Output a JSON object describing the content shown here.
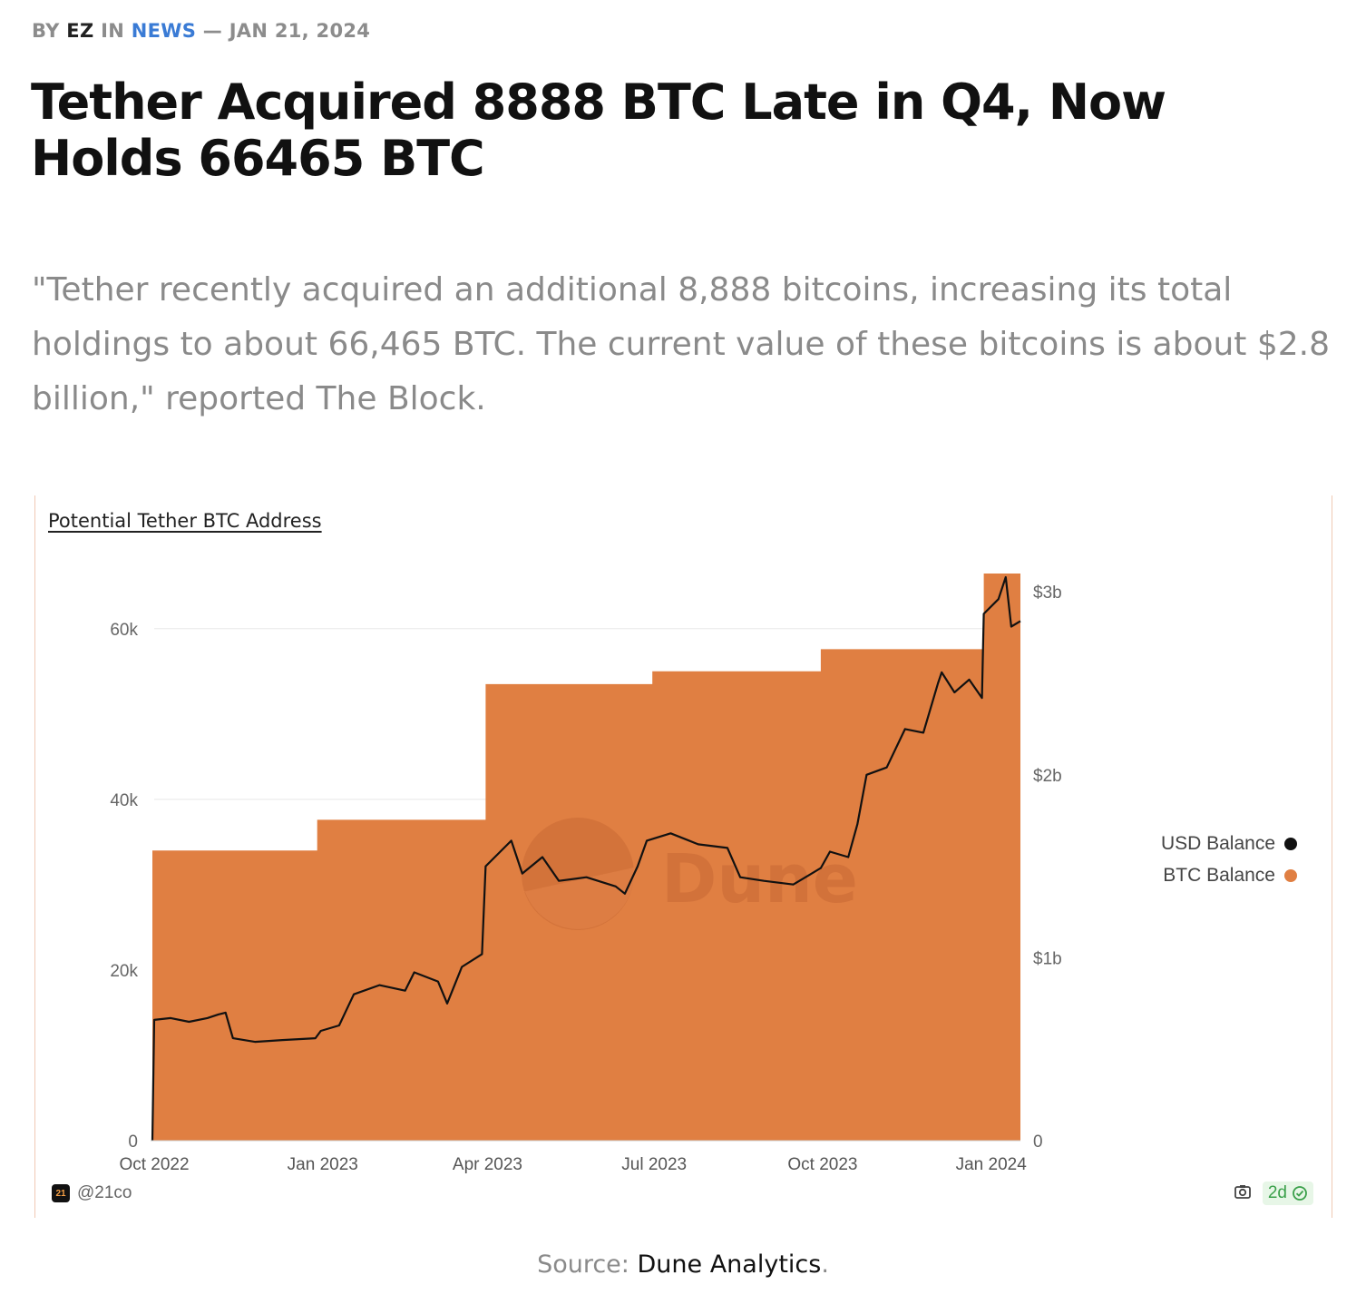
{
  "byline": {
    "by": "BY",
    "author": "EZ",
    "in": "IN",
    "category": "NEWS",
    "date": "— JAN 21, 2024"
  },
  "headline": "Tether Acquired 8888 BTC Late in Q4, Now Holds 66465 BTC",
  "lede": "\"Tether recently acquired an additional 8,888 bitcoins, increasing its total holdings to about 66,465 BTC. The current value of these bitcoins is about $2.8 billion,\" reported The Block.",
  "caption": {
    "prefix": "Source:",
    "source": "Dune Analytics",
    "suffix": "."
  },
  "chart_footer": {
    "logo_text": "21",
    "handle": "@21co",
    "age_badge": "2d"
  },
  "chart_data": {
    "type": "area",
    "title": "Potential Tether BTC Address",
    "watermark": "Dune",
    "colors": {
      "btc": "#e07f42",
      "usd": "#111111",
      "grid": "#e8e8e8"
    },
    "x_ticks": [
      "2022-10-01",
      "2023-01-01",
      "2023-04-01",
      "2023-07-01",
      "2023-10-01",
      "2024-01-01"
    ],
    "x_tick_labels": [
      "Oct 2022",
      "Jan 2023",
      "Apr 2023",
      "Jul 2023",
      "Oct 2023",
      "Jan 2024"
    ],
    "y_left": {
      "ticks": [
        0,
        20000,
        40000,
        60000
      ],
      "tick_labels": [
        "0",
        "20k",
        "40k",
        "60k"
      ],
      "range": [
        0,
        66465
      ]
    },
    "y_right": {
      "ticks": [
        0,
        1000000000,
        2000000000,
        3000000000
      ],
      "tick_labels": [
        "0",
        "$1b",
        "$2b",
        "$3b"
      ],
      "range": [
        0,
        3100000000
      ]
    },
    "legend": {
      "position": "right",
      "entries": [
        "USD Balance",
        "BTC Balance"
      ]
    },
    "series": [
      {
        "name": "BTC Balance",
        "axis": "left",
        "kind": "step-area",
        "points": [
          [
            "2022-09-30",
            0
          ],
          [
            "2022-09-30",
            34000
          ],
          [
            "2022-12-29",
            34000
          ],
          [
            "2022-12-29",
            37600
          ],
          [
            "2023-03-31",
            37600
          ],
          [
            "2023-03-31",
            53500
          ],
          [
            "2023-06-30",
            53500
          ],
          [
            "2023-06-30",
            55000
          ],
          [
            "2023-09-30",
            55000
          ],
          [
            "2023-09-30",
            57600
          ],
          [
            "2023-12-28",
            57600
          ],
          [
            "2023-12-28",
            66465
          ],
          [
            "2024-01-17",
            66465
          ]
        ]
      },
      {
        "name": "USD Balance",
        "axis": "right",
        "kind": "line",
        "points": [
          [
            "2022-09-30",
            0
          ],
          [
            "2022-10-01",
            660000000
          ],
          [
            "2022-10-10",
            670000000
          ],
          [
            "2022-10-20",
            650000000
          ],
          [
            "2022-10-30",
            670000000
          ],
          [
            "2022-11-05",
            690000000
          ],
          [
            "2022-11-09",
            700000000
          ],
          [
            "2022-11-13",
            560000000
          ],
          [
            "2022-11-25",
            540000000
          ],
          [
            "2022-12-10",
            550000000
          ],
          [
            "2022-12-28",
            560000000
          ],
          [
            "2022-12-31",
            600000000
          ],
          [
            "2023-01-10",
            630000000
          ],
          [
            "2023-01-18",
            800000000
          ],
          [
            "2023-02-01",
            850000000
          ],
          [
            "2023-02-15",
            820000000
          ],
          [
            "2023-02-20",
            920000000
          ],
          [
            "2023-03-05",
            870000000
          ],
          [
            "2023-03-10",
            750000000
          ],
          [
            "2023-03-18",
            950000000
          ],
          [
            "2023-03-29",
            1020000000
          ],
          [
            "2023-03-31",
            1500000000
          ],
          [
            "2023-04-14",
            1640000000
          ],
          [
            "2023-04-20",
            1460000000
          ],
          [
            "2023-05-01",
            1550000000
          ],
          [
            "2023-05-10",
            1420000000
          ],
          [
            "2023-05-25",
            1440000000
          ],
          [
            "2023-06-10",
            1390000000
          ],
          [
            "2023-06-15",
            1350000000
          ],
          [
            "2023-06-22",
            1500000000
          ],
          [
            "2023-06-27",
            1640000000
          ],
          [
            "2023-07-10",
            1680000000
          ],
          [
            "2023-07-25",
            1620000000
          ],
          [
            "2023-08-10",
            1600000000
          ],
          [
            "2023-08-17",
            1440000000
          ],
          [
            "2023-08-30",
            1420000000
          ],
          [
            "2023-09-15",
            1400000000
          ],
          [
            "2023-09-30",
            1490000000
          ],
          [
            "2023-10-05",
            1580000000
          ],
          [
            "2023-10-15",
            1550000000
          ],
          [
            "2023-10-20",
            1730000000
          ],
          [
            "2023-10-25",
            2000000000
          ],
          [
            "2023-11-05",
            2040000000
          ],
          [
            "2023-11-15",
            2250000000
          ],
          [
            "2023-11-25",
            2230000000
          ],
          [
            "2023-12-03",
            2500000000
          ],
          [
            "2023-12-05",
            2560000000
          ],
          [
            "2023-12-12",
            2450000000
          ],
          [
            "2023-12-20",
            2520000000
          ],
          [
            "2023-12-27",
            2420000000
          ],
          [
            "2023-12-28",
            2880000000
          ],
          [
            "2024-01-05",
            2960000000
          ],
          [
            "2024-01-09",
            3080000000
          ],
          [
            "2024-01-12",
            2810000000
          ],
          [
            "2024-01-17",
            2840000000
          ]
        ]
      }
    ]
  }
}
